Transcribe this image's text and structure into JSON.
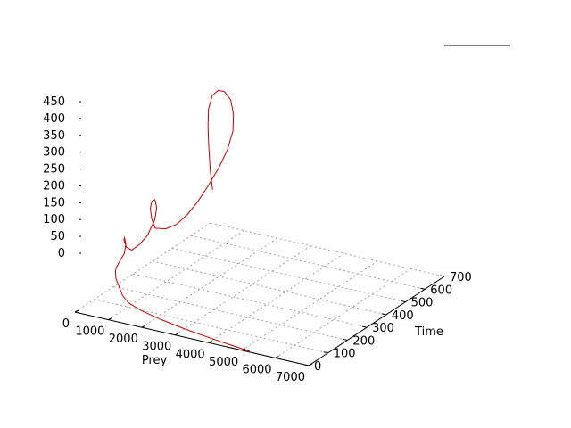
{
  "chart_data": {
    "type": "line3d",
    "title": "",
    "xlabel": "Prey",
    "ylabel": "Time",
    "zlabel": "",
    "xlim": [
      0,
      7000
    ],
    "ylim": [
      0,
      700
    ],
    "zlim": [
      0,
      450
    ],
    "xticks": [
      "0",
      "1000",
      "2000",
      "3000",
      "4000",
      "5000",
      "6000",
      "7000"
    ],
    "yticks": [
      "0",
      "100",
      "200",
      "300",
      "400",
      "500",
      "600",
      "700"
    ],
    "zticks": [
      "0",
      "50",
      "100",
      "150",
      "200",
      "250",
      "300",
      "350",
      "400",
      "450"
    ],
    "grid": true,
    "legend_position": "top-right",
    "series": [
      {
        "color": "#cc0000",
        "points": [
          [
            60,
            700,
            100
          ],
          [
            50,
            690,
            160
          ],
          [
            60,
            680,
            240
          ],
          [
            100,
            670,
            300
          ],
          [
            200,
            655,
            360
          ],
          [
            400,
            640,
            410
          ],
          [
            700,
            620,
            440
          ],
          [
            1000,
            600,
            450
          ],
          [
            1300,
            580,
            440
          ],
          [
            1500,
            560,
            410
          ],
          [
            1600,
            540,
            370
          ],
          [
            1550,
            520,
            320
          ],
          [
            1400,
            500,
            270
          ],
          [
            1200,
            480,
            220
          ],
          [
            1000,
            460,
            175
          ],
          [
            800,
            440,
            140
          ],
          [
            600,
            420,
            115
          ],
          [
            400,
            400,
            105
          ],
          [
            200,
            380,
            110
          ],
          [
            150,
            370,
            140
          ],
          [
            170,
            360,
            175
          ],
          [
            300,
            345,
            205
          ],
          [
            480,
            330,
            220
          ],
          [
            620,
            315,
            205
          ],
          [
            650,
            300,
            175
          ],
          [
            550,
            280,
            135
          ],
          [
            400,
            265,
            110
          ],
          [
            250,
            250,
            95
          ],
          [
            150,
            240,
            105
          ],
          [
            130,
            230,
            130
          ],
          [
            180,
            225,
            140
          ],
          [
            250,
            220,
            125
          ],
          [
            260,
            210,
            100
          ],
          [
            200,
            195,
            80
          ],
          [
            160,
            185,
            65
          ],
          [
            200,
            175,
            60
          ],
          [
            300,
            160,
            45
          ],
          [
            500,
            145,
            28
          ],
          [
            700,
            125,
            18
          ],
          [
            1000,
            105,
            10
          ],
          [
            1500,
            85,
            6
          ],
          [
            2200,
            65,
            3
          ],
          [
            3000,
            45,
            2
          ],
          [
            4000,
            25,
            1
          ],
          [
            5200,
            5,
            0
          ]
        ]
      }
    ]
  }
}
